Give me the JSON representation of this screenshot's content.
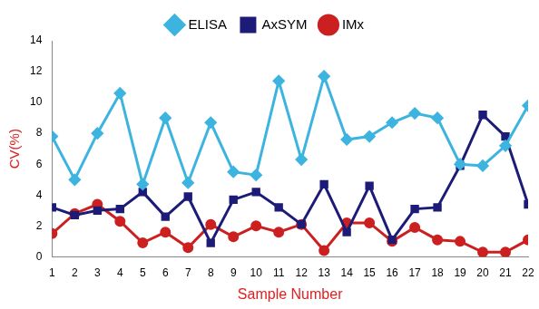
{
  "chart_data": {
    "type": "line",
    "x_label": "Sample Number",
    "y_label": "CV(%)",
    "categories": [
      "1",
      "2",
      "3",
      "4",
      "5",
      "6",
      "7",
      "8",
      "9",
      "10",
      "11",
      "12",
      "13",
      "14",
      "15",
      "16",
      "17",
      "18",
      "19",
      "20",
      "21",
      "22"
    ],
    "series": [
      {
        "name": "ELISA",
        "color": "#3db4e0",
        "marker": "diamond",
        "line_style": "solid",
        "values": [
          7.8,
          5.0,
          8.0,
          10.6,
          4.7,
          9.0,
          4.8,
          8.7,
          5.5,
          5.3,
          11.4,
          6.3,
          11.7,
          7.6,
          7.8,
          8.7,
          9.3,
          9.0,
          6.0,
          5.9,
          7.2,
          9.8
        ]
      },
      {
        "name": "AxSYM",
        "color": "#1c1c78",
        "marker": "square",
        "line_style": "solid",
        "values": [
          3.2,
          2.7,
          3.0,
          3.1,
          4.2,
          2.6,
          3.9,
          0.9,
          3.7,
          4.2,
          3.2,
          2.1,
          4.7,
          1.6,
          4.6,
          1.1,
          3.1,
          3.2,
          5.9,
          9.2,
          7.8,
          3.4
        ]
      },
      {
        "name": "IMx",
        "color": "#cc2020",
        "marker": "circle",
        "line_style": "solid",
        "values": [
          1.5,
          2.8,
          3.4,
          2.3,
          0.9,
          1.6,
          0.6,
          2.1,
          1.3,
          2.0,
          1.6,
          2.1,
          0.4,
          2.2,
          2.2,
          1.0,
          1.9,
          1.1,
          1.0,
          0.3,
          0.3,
          1.1
        ]
      }
    ],
    "ylim": [
      0,
      14
    ],
    "yticks": [
      0,
      2,
      4,
      6,
      8,
      10,
      12,
      14
    ],
    "grid": false,
    "legend": "top"
  }
}
